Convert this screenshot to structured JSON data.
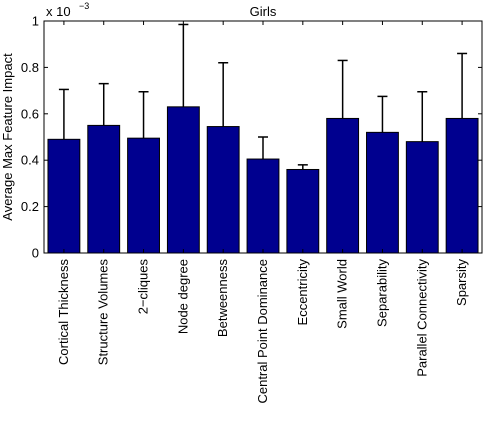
{
  "chart_data": {
    "type": "bar",
    "title": "Girls",
    "xlabel": "",
    "ylabel": "Average Max Feature Impact",
    "y_exponent": {
      "base": "x 10",
      "power": "−3"
    },
    "ylim": [
      0,
      1
    ],
    "yticks": [
      0,
      0.2,
      0.4,
      0.6,
      0.8,
      1
    ],
    "ytick_labels": [
      "0",
      "0.2",
      "0.4",
      "0.6",
      "0.8",
      "1"
    ],
    "categories": [
      "Cortical Thickness",
      "Structure Volumes",
      "2−cliques",
      "Node degree",
      "Betweenness",
      "Central Point Dominance",
      "Eccentricity",
      "Small World",
      "Separability",
      "Parallel Connectivity",
      "Sparsity"
    ],
    "values": [
      0.49,
      0.55,
      0.495,
      0.63,
      0.545,
      0.405,
      0.36,
      0.58,
      0.52,
      0.48,
      0.58
    ],
    "error_upper": [
      0.705,
      0.73,
      0.695,
      0.985,
      0.82,
      0.5,
      0.38,
      0.83,
      0.675,
      0.695,
      0.86
    ],
    "bar_color": "#00008f",
    "grid": false,
    "legend": "none"
  }
}
